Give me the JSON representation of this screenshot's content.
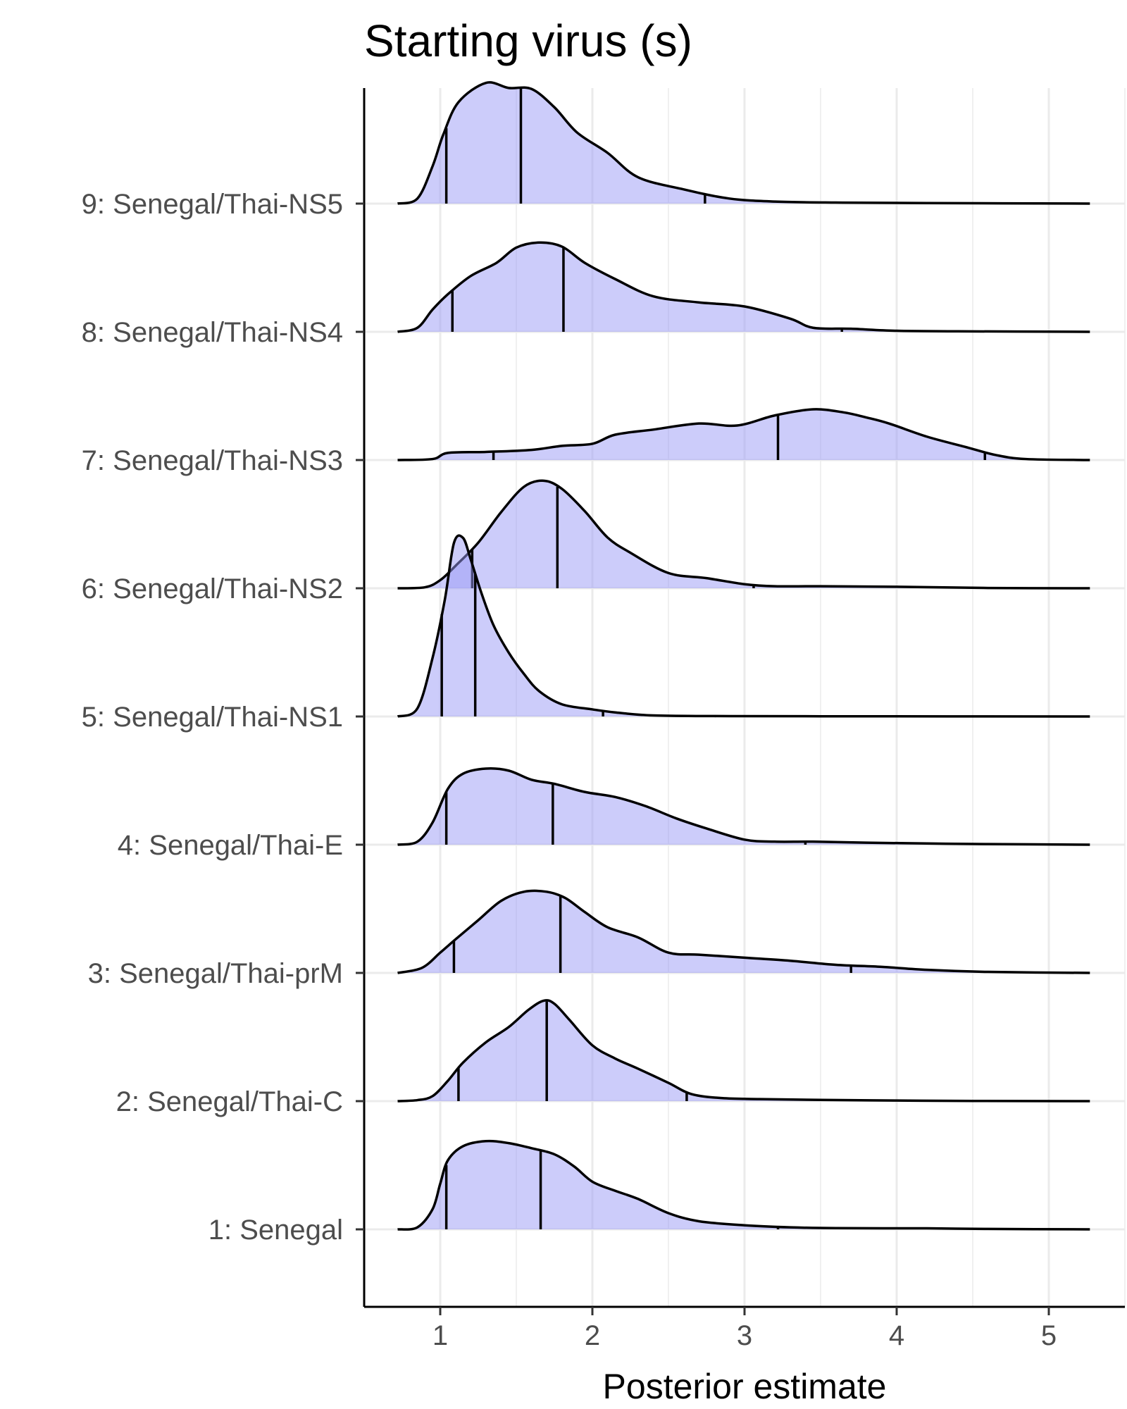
{
  "chart_data": {
    "type": "ridgeline",
    "title": "Starting virus (s)",
    "xlabel": "Posterior estimate",
    "ylabel": "",
    "xlim": [
      0.5,
      5.5
    ],
    "xticks": [
      1,
      2,
      3,
      4,
      5
    ],
    "tick_labels": [
      "1",
      "2",
      "3",
      "4",
      "5"
    ],
    "grid": "vertical major and minor lines",
    "fill_color": "#9a9af5",
    "line_color": "#000000",
    "grid_color": "#ebebeb",
    "categories": [
      "1: Senegal",
      "2: Senegal/Thai-C",
      "3: Senegal/Thai-prM",
      "4: Senegal/Thai-E",
      "5: Senegal/Thai-NS1",
      "6: Senegal/Thai-NS2",
      "7: Senegal/Thai-NS3",
      "8: Senegal/Thai-NS4",
      "9: Senegal/Thai-NS5"
    ],
    "series": [
      {
        "category": "1: Senegal",
        "quantiles": [
          1.04,
          1.66,
          3.22
        ],
        "density": [
          [
            0.72,
            0
          ],
          [
            0.85,
            0.02
          ],
          [
            0.95,
            0.2
          ],
          [
            1.0,
            0.45
          ],
          [
            1.05,
            0.68
          ],
          [
            1.15,
            0.82
          ],
          [
            1.3,
            0.87
          ],
          [
            1.45,
            0.85
          ],
          [
            1.6,
            0.8
          ],
          [
            1.75,
            0.74
          ],
          [
            1.88,
            0.62
          ],
          [
            2.0,
            0.47
          ],
          [
            2.15,
            0.38
          ],
          [
            2.3,
            0.3
          ],
          [
            2.5,
            0.16
          ],
          [
            2.7,
            0.08
          ],
          [
            3.0,
            0.04
          ],
          [
            3.3,
            0.02
          ],
          [
            3.6,
            0.012
          ],
          [
            4.2,
            0.01
          ],
          [
            4.6,
            0.004
          ],
          [
            5.27,
            0
          ]
        ]
      },
      {
        "category": "2: Senegal/Thai-C",
        "quantiles": [
          1.12,
          1.7,
          2.62
        ],
        "density": [
          [
            0.72,
            0
          ],
          [
            0.85,
            0.01
          ],
          [
            0.95,
            0.05
          ],
          [
            1.05,
            0.2
          ],
          [
            1.15,
            0.38
          ],
          [
            1.3,
            0.58
          ],
          [
            1.45,
            0.73
          ],
          [
            1.58,
            0.9
          ],
          [
            1.68,
            0.99
          ],
          [
            1.75,
            0.96
          ],
          [
            1.85,
            0.8
          ],
          [
            2.0,
            0.55
          ],
          [
            2.15,
            0.42
          ],
          [
            2.3,
            0.32
          ],
          [
            2.5,
            0.18
          ],
          [
            2.65,
            0.07
          ],
          [
            2.85,
            0.03
          ],
          [
            3.1,
            0.02
          ],
          [
            3.5,
            0.012
          ],
          [
            4.0,
            0.006
          ],
          [
            4.5,
            0.002
          ],
          [
            5.27,
            0
          ]
        ]
      },
      {
        "category": "3: Senegal/Thai-prM",
        "quantiles": [
          1.09,
          1.79,
          3.7
        ],
        "density": [
          [
            0.72,
            0
          ],
          [
            0.88,
            0.05
          ],
          [
            1.0,
            0.2
          ],
          [
            1.1,
            0.33
          ],
          [
            1.25,
            0.52
          ],
          [
            1.4,
            0.71
          ],
          [
            1.55,
            0.8
          ],
          [
            1.7,
            0.8
          ],
          [
            1.82,
            0.74
          ],
          [
            1.95,
            0.6
          ],
          [
            2.1,
            0.45
          ],
          [
            2.3,
            0.35
          ],
          [
            2.5,
            0.2
          ],
          [
            2.7,
            0.18
          ],
          [
            3.0,
            0.15
          ],
          [
            3.3,
            0.12
          ],
          [
            3.6,
            0.08
          ],
          [
            3.9,
            0.06
          ],
          [
            4.2,
            0.03
          ],
          [
            4.6,
            0.01
          ],
          [
            5.27,
            0
          ]
        ]
      },
      {
        "category": "4: Senegal/Thai-E",
        "quantiles": [
          1.04,
          1.74,
          3.4
        ],
        "density": [
          [
            0.72,
            0
          ],
          [
            0.85,
            0.03
          ],
          [
            0.95,
            0.22
          ],
          [
            1.05,
            0.55
          ],
          [
            1.15,
            0.7
          ],
          [
            1.3,
            0.75
          ],
          [
            1.45,
            0.73
          ],
          [
            1.6,
            0.64
          ],
          [
            1.75,
            0.6
          ],
          [
            1.95,
            0.52
          ],
          [
            2.15,
            0.47
          ],
          [
            2.35,
            0.38
          ],
          [
            2.55,
            0.26
          ],
          [
            2.75,
            0.16
          ],
          [
            3.0,
            0.05
          ],
          [
            3.2,
            0.03
          ],
          [
            3.45,
            0.03
          ],
          [
            3.8,
            0.02
          ],
          [
            4.2,
            0.012
          ],
          [
            4.6,
            0.006
          ],
          [
            5.27,
            0
          ]
        ]
      },
      {
        "category": "5: Senegal/Thai-NS1",
        "quantiles": [
          1.01,
          1.23,
          2.07
        ],
        "density": [
          [
            0.72,
            0
          ],
          [
            0.85,
            0.08
          ],
          [
            0.95,
            0.58
          ],
          [
            1.03,
            1.15
          ],
          [
            1.09,
            1.71
          ],
          [
            1.15,
            1.76
          ],
          [
            1.2,
            1.55
          ],
          [
            1.27,
            1.22
          ],
          [
            1.35,
            0.9
          ],
          [
            1.45,
            0.63
          ],
          [
            1.55,
            0.42
          ],
          [
            1.65,
            0.25
          ],
          [
            1.8,
            0.12
          ],
          [
            2.0,
            0.07
          ],
          [
            2.15,
            0.04
          ],
          [
            2.4,
            0.01
          ],
          [
            2.8,
            0.004
          ],
          [
            3.5,
            0.002
          ],
          [
            5.27,
            0
          ]
        ]
      },
      {
        "category": "6: Senegal/Thai-NS2",
        "quantiles": [
          1.21,
          1.77,
          3.06
        ],
        "density": [
          [
            0.72,
            0
          ],
          [
            0.9,
            0.01
          ],
          [
            1.0,
            0.08
          ],
          [
            1.1,
            0.22
          ],
          [
            1.25,
            0.45
          ],
          [
            1.4,
            0.75
          ],
          [
            1.55,
            1.0
          ],
          [
            1.68,
            1.06
          ],
          [
            1.8,
            0.98
          ],
          [
            1.95,
            0.76
          ],
          [
            2.1,
            0.5
          ],
          [
            2.25,
            0.35
          ],
          [
            2.5,
            0.15
          ],
          [
            2.75,
            0.1
          ],
          [
            3.0,
            0.04
          ],
          [
            3.2,
            0.02
          ],
          [
            3.5,
            0.02
          ],
          [
            4.0,
            0.015
          ],
          [
            4.6,
            0.003
          ],
          [
            5.27,
            0
          ]
        ]
      },
      {
        "category": "7: Senegal/Thai-NS3",
        "quantiles": [
          1.35,
          3.22,
          4.58
        ],
        "density": [
          [
            0.72,
            0
          ],
          [
            0.95,
            0.01
          ],
          [
            1.05,
            0.07
          ],
          [
            1.3,
            0.08
          ],
          [
            1.6,
            0.1
          ],
          [
            1.8,
            0.14
          ],
          [
            2.0,
            0.16
          ],
          [
            2.15,
            0.25
          ],
          [
            2.4,
            0.3
          ],
          [
            2.7,
            0.36
          ],
          [
            2.95,
            0.34
          ],
          [
            3.2,
            0.44
          ],
          [
            3.45,
            0.5
          ],
          [
            3.65,
            0.47
          ],
          [
            3.8,
            0.42
          ],
          [
            3.95,
            0.36
          ],
          [
            4.2,
            0.23
          ],
          [
            4.45,
            0.13
          ],
          [
            4.65,
            0.05
          ],
          [
            4.85,
            0.01
          ],
          [
            5.27,
            0
          ]
        ]
      },
      {
        "category": "8: Senegal/Thai-NS4",
        "quantiles": [
          1.08,
          1.81,
          3.64
        ],
        "density": [
          [
            0.72,
            0
          ],
          [
            0.85,
            0.04
          ],
          [
            0.95,
            0.22
          ],
          [
            1.05,
            0.37
          ],
          [
            1.2,
            0.55
          ],
          [
            1.37,
            0.68
          ],
          [
            1.5,
            0.83
          ],
          [
            1.65,
            0.88
          ],
          [
            1.8,
            0.84
          ],
          [
            1.95,
            0.68
          ],
          [
            2.15,
            0.52
          ],
          [
            2.4,
            0.35
          ],
          [
            2.7,
            0.29
          ],
          [
            3.0,
            0.25
          ],
          [
            3.3,
            0.13
          ],
          [
            3.45,
            0.04
          ],
          [
            3.7,
            0.03
          ],
          [
            4.0,
            0.01
          ],
          [
            4.4,
            0.005
          ],
          [
            5.27,
            0
          ]
        ]
      },
      {
        "category": "9: Senegal/Thai-NS5",
        "quantiles": [
          1.04,
          1.53,
          2.74
        ],
        "density": [
          [
            0.72,
            0
          ],
          [
            0.85,
            0.05
          ],
          [
            0.95,
            0.37
          ],
          [
            1.02,
            0.68
          ],
          [
            1.12,
            1.0
          ],
          [
            1.3,
            1.19
          ],
          [
            1.45,
            1.14
          ],
          [
            1.6,
            1.13
          ],
          [
            1.75,
            0.95
          ],
          [
            1.9,
            0.7
          ],
          [
            2.1,
            0.5
          ],
          [
            2.3,
            0.26
          ],
          [
            2.6,
            0.14
          ],
          [
            2.9,
            0.05
          ],
          [
            3.2,
            0.02
          ],
          [
            3.6,
            0.01
          ],
          [
            4.2,
            0.005
          ],
          [
            5.27,
            0
          ]
        ]
      }
    ]
  }
}
